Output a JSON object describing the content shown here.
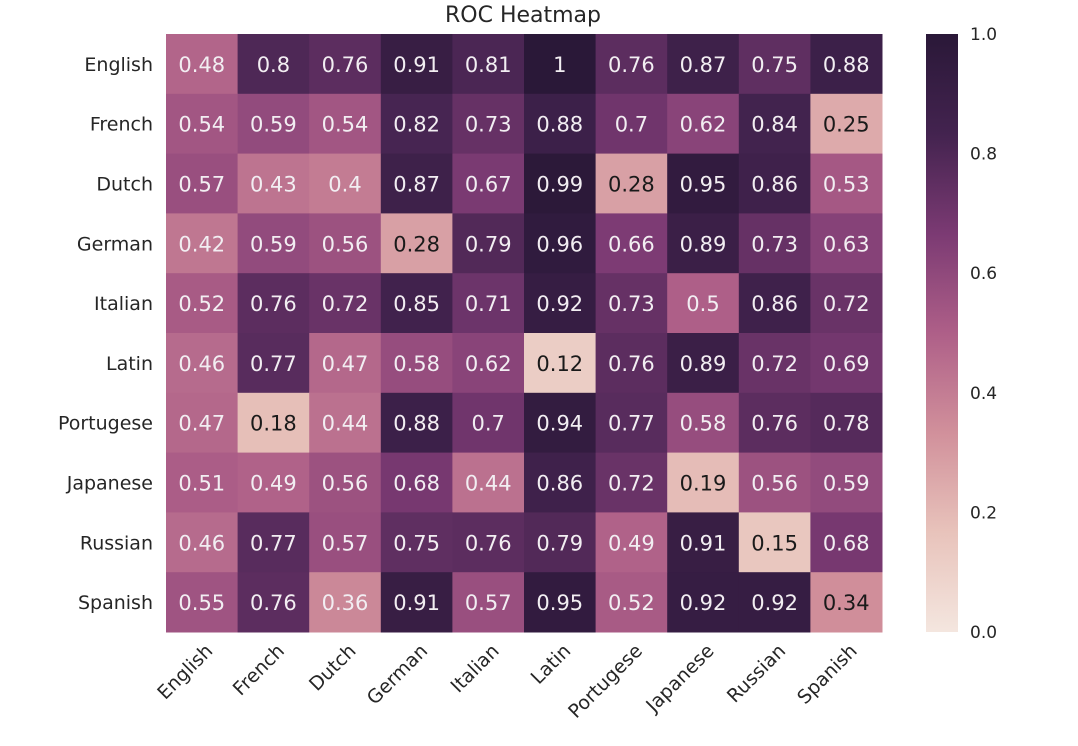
{
  "chart_data": {
    "type": "heatmap",
    "title": "ROC Heatmap",
    "xlabel": "",
    "ylabel": "",
    "rows": [
      "English",
      "French",
      "Dutch",
      "German",
      "Italian",
      "Latin",
      "Portugese",
      "Japanese",
      "Russian",
      "Spanish"
    ],
    "columns": [
      "English",
      "French",
      "Dutch",
      "German",
      "Italian",
      "Latin",
      "Portugese",
      "Japanese",
      "Russian",
      "Spanish"
    ],
    "values": [
      [
        0.48,
        0.8,
        0.76,
        0.91,
        0.81,
        1,
        0.76,
        0.87,
        0.75,
        0.88
      ],
      [
        0.54,
        0.59,
        0.54,
        0.82,
        0.73,
        0.88,
        0.7,
        0.62,
        0.84,
        0.25
      ],
      [
        0.57,
        0.43,
        0.4,
        0.87,
        0.67,
        0.99,
        0.28,
        0.95,
        0.86,
        0.53
      ],
      [
        0.42,
        0.59,
        0.56,
        0.28,
        0.79,
        0.96,
        0.66,
        0.89,
        0.73,
        0.63
      ],
      [
        0.52,
        0.76,
        0.72,
        0.85,
        0.71,
        0.92,
        0.73,
        0.5,
        0.86,
        0.72
      ],
      [
        0.46,
        0.77,
        0.47,
        0.58,
        0.62,
        0.12,
        0.76,
        0.89,
        0.72,
        0.69
      ],
      [
        0.47,
        0.18,
        0.44,
        0.88,
        0.7,
        0.94,
        0.77,
        0.58,
        0.76,
        0.78
      ],
      [
        0.51,
        0.49,
        0.56,
        0.68,
        0.44,
        0.86,
        0.72,
        0.19,
        0.56,
        0.59
      ],
      [
        0.46,
        0.77,
        0.57,
        0.75,
        0.76,
        0.79,
        0.49,
        0.91,
        0.15,
        0.68
      ],
      [
        0.55,
        0.76,
        0.36,
        0.91,
        0.57,
        0.95,
        0.52,
        0.92,
        0.92,
        0.34
      ]
    ],
    "colorbar": {
      "ticks": [
        "0.0",
        "0.2",
        "0.4",
        "0.6",
        "0.8",
        "1.0"
      ],
      "range": [
        0,
        1
      ]
    },
    "colormap": [
      "#f4e6df",
      "#e8c3bb",
      "#d1909b",
      "#ae5f88",
      "#7b3a73",
      "#43234f",
      "#2a1838"
    ],
    "text_colors": {
      "light": "#f2eef2",
      "dark": "#1a1a1a"
    }
  }
}
